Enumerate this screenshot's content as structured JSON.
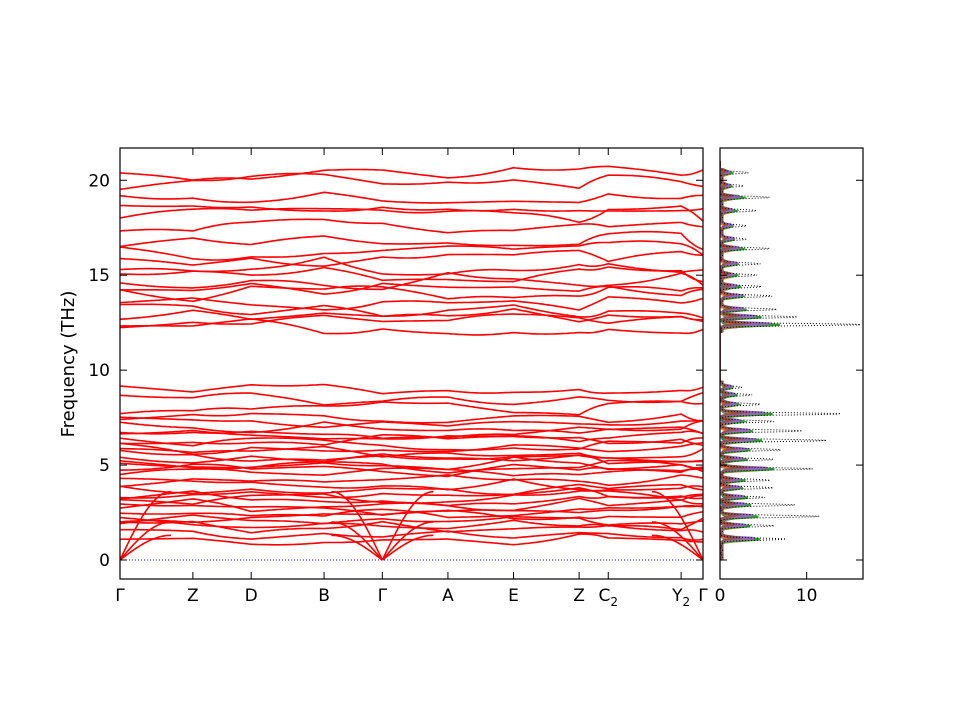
{
  "chart_data": [
    {
      "type": "line",
      "title": "",
      "ylabel": "Frequency (THz)",
      "xlabel": "",
      "ylim": [
        -1.0,
        21.7
      ],
      "yticks": [
        0,
        5,
        10,
        15,
        20
      ],
      "path_ticks": [
        {
          "label": "Γ",
          "sub": "",
          "x": 0
        },
        {
          "label": "Z",
          "sub": "",
          "x": 0.5
        },
        {
          "label": "D",
          "sub": "",
          "x": 0.9
        },
        {
          "label": "B",
          "sub": "",
          "x": 1.4
        },
        {
          "label": "Γ",
          "sub": "",
          "x": 1.8
        },
        {
          "label": "A",
          "sub": "",
          "x": 2.25
        },
        {
          "label": "E",
          "sub": "",
          "x": 2.7
        },
        {
          "label": "Z",
          "sub": "",
          "x": 3.15
        },
        {
          "label": "C",
          "sub": "2",
          "x": 3.35
        },
        {
          "label": "Y",
          "sub": "2",
          "x": 3.85
        },
        {
          "label": "Γ",
          "sub": "",
          "x": 4.0
        }
      ],
      "xlim": [
        0,
        4.0
      ],
      "segment_boundaries": [
        0,
        0.5,
        0.9,
        1.4,
        1.8,
        2.25,
        2.7,
        3.15,
        3.35,
        3.85,
        4.0
      ],
      "zero_line": {
        "y": 0,
        "color": "#0000ff",
        "style": "dotted"
      },
      "band_color": "#ff0000",
      "bands_optical_levels": {
        "low_group": [
          1.1,
          1.4,
          1.7,
          1.9,
          2.1,
          2.3,
          2.5,
          2.7,
          2.9,
          3.2,
          3.4,
          3.6,
          3.8,
          4.0,
          4.2,
          4.5,
          4.7,
          4.9,
          5.1,
          5.3,
          5.5,
          5.7,
          5.9,
          6.1,
          6.3,
          6.5,
          6.7,
          7.0,
          7.3,
          7.6,
          8.0,
          8.5,
          9.1
        ],
        "high_group": [
          12.3,
          12.6,
          12.9,
          13.2,
          13.6,
          14.0,
          14.3,
          14.7,
          15.1,
          15.5,
          15.9,
          16.3,
          16.8,
          17.5,
          18.2,
          18.7,
          19.2,
          19.9,
          20.4
        ]
      },
      "acoustic_gamma_points": [
        0,
        1.8,
        4.0
      ],
      "acoustic_tops": [
        1.3,
        2.0,
        3.6
      ]
    },
    {
      "type": "line",
      "title": "",
      "xlabel": "",
      "ylabel": "",
      "orientation": "horizontal-dos",
      "xlim": [
        0,
        16.5
      ],
      "xticks": [
        0,
        10
      ],
      "ylim": [
        -1.0,
        21.7
      ],
      "total_dos_style": {
        "color": "#000000",
        "style": "dotted"
      },
      "peaks": [
        {
          "y": 12.4,
          "total": 16.2,
          "partial": 8.0
        },
        {
          "y": 12.8,
          "total": 9.0,
          "partial": 5.5
        },
        {
          "y": 13.2,
          "total": 6.5,
          "partial": 3.5
        },
        {
          "y": 13.9,
          "total": 6.0,
          "partial": 3.2
        },
        {
          "y": 14.4,
          "total": 4.5,
          "partial": 2.5
        },
        {
          "y": 15.0,
          "total": 4.0,
          "partial": 2.2
        },
        {
          "y": 15.6,
          "total": 4.5,
          "partial": 2.5
        },
        {
          "y": 16.4,
          "total": 5.5,
          "partial": 3.0
        },
        {
          "y": 16.9,
          "total": 3.0,
          "partial": 1.8
        },
        {
          "y": 17.6,
          "total": 3.0,
          "partial": 1.6
        },
        {
          "y": 18.4,
          "total": 4.0,
          "partial": 2.0
        },
        {
          "y": 19.1,
          "total": 5.5,
          "partial": 3.0
        },
        {
          "y": 19.7,
          "total": 2.5,
          "partial": 1.5
        },
        {
          "y": 20.4,
          "total": 3.0,
          "partial": 1.5
        },
        {
          "y": 1.1,
          "total": 7.5,
          "partial": 5.5
        },
        {
          "y": 1.8,
          "total": 6.0,
          "partial": 4.0
        },
        {
          "y": 2.3,
          "total": 11.5,
          "partial": 5.0
        },
        {
          "y": 2.9,
          "total": 8.5,
          "partial": 4.0
        },
        {
          "y": 3.3,
          "total": 5.0,
          "partial": 3.5
        },
        {
          "y": 3.8,
          "total": 6.0,
          "partial": 3.0
        },
        {
          "y": 4.2,
          "total": 5.5,
          "partial": 3.2
        },
        {
          "y": 4.8,
          "total": 10.5,
          "partial": 7.5
        },
        {
          "y": 5.3,
          "total": 6.0,
          "partial": 3.5
        },
        {
          "y": 5.8,
          "total": 7.0,
          "partial": 4.0
        },
        {
          "y": 6.3,
          "total": 12.0,
          "partial": 5.5
        },
        {
          "y": 6.8,
          "total": 9.5,
          "partial": 4.5
        },
        {
          "y": 7.3,
          "total": 6.0,
          "partial": 3.0
        },
        {
          "y": 7.7,
          "total": 14.0,
          "partial": 7.0
        },
        {
          "y": 8.2,
          "total": 4.5,
          "partial": 2.5
        },
        {
          "y": 8.7,
          "total": 3.5,
          "partial": 2.0
        },
        {
          "y": 9.1,
          "total": 2.5,
          "partial": 1.5
        }
      ],
      "partial_colors": [
        "#1f77b4",
        "#ff7f0e",
        "#2ca02c",
        "#d62728",
        "#9467bd",
        "#8c564b"
      ]
    }
  ]
}
